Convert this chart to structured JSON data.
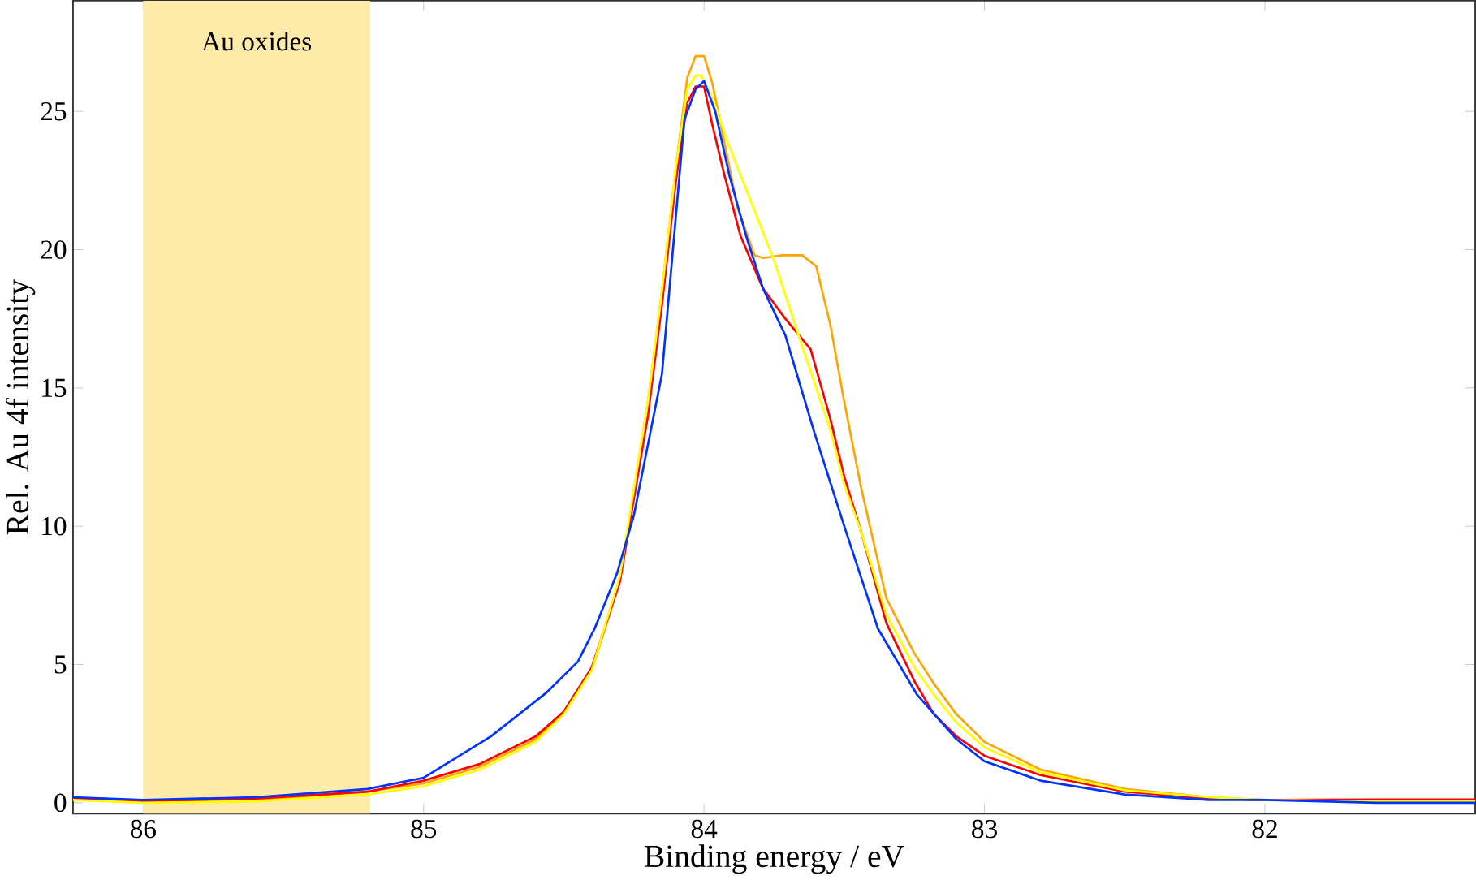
{
  "chart_data": {
    "type": "line",
    "xlabel": "Binding energy / eV",
    "ylabel": "Rel. Au 4f intensity",
    "xlim": [
      86.25,
      81.25
    ],
    "ylim": [
      -0.4,
      29
    ],
    "xticks": [
      86,
      85,
      84,
      83,
      82
    ],
    "yticks": [
      0,
      5,
      10,
      15,
      20,
      25
    ],
    "grid": false,
    "marker": "none",
    "line_style": "solid",
    "bands": [
      {
        "axis": "x",
        "from": 86,
        "to": 85.19,
        "label": "Au oxides",
        "color": "#feeba8"
      }
    ],
    "series": [
      {
        "color": "#ffa500",
        "x": [
          86.25,
          86.0,
          85.6,
          85.2,
          85.0,
          84.8,
          84.6,
          84.5,
          84.4,
          84.3,
          84.2,
          84.15,
          84.1,
          84.06,
          84.03,
          84.0,
          83.97,
          83.93,
          83.88,
          83.82,
          83.79,
          83.72,
          83.65,
          83.6,
          83.55,
          83.5,
          83.44,
          83.35,
          83.25,
          83.18,
          83.1,
          83.0,
          82.8,
          82.5,
          82.2,
          82.0,
          81.6,
          81.25
        ],
        "values": [
          0.1,
          0.05,
          0.1,
          0.4,
          0.7,
          1.3,
          2.3,
          3.3,
          4.8,
          8.0,
          14.5,
          18.5,
          23.0,
          26.2,
          27.0,
          27.0,
          26.0,
          24.0,
          21.5,
          19.8,
          19.7,
          19.8,
          19.8,
          19.4,
          17.3,
          14.5,
          11.4,
          7.4,
          5.4,
          4.3,
          3.2,
          2.2,
          1.2,
          0.5,
          0.2,
          0.1,
          0.05,
          0.05
        ]
      },
      {
        "color": "#ff0000",
        "x": [
          86.25,
          86.0,
          85.6,
          85.2,
          85.0,
          84.8,
          84.6,
          84.5,
          84.4,
          84.3,
          84.2,
          84.15,
          84.1,
          84.06,
          84.03,
          84.0,
          83.97,
          83.93,
          83.87,
          83.79,
          83.71,
          83.62,
          83.55,
          83.5,
          83.44,
          83.35,
          83.25,
          83.18,
          83.1,
          83.0,
          82.8,
          82.5,
          82.2,
          82.0,
          81.6,
          81.25
        ],
        "values": [
          0.15,
          0.05,
          0.15,
          0.4,
          0.8,
          1.4,
          2.4,
          3.3,
          4.9,
          8.0,
          14.0,
          18.0,
          22.5,
          25.3,
          25.9,
          25.9,
          24.5,
          22.8,
          20.5,
          18.6,
          17.5,
          16.4,
          13.9,
          11.8,
          9.8,
          6.5,
          4.4,
          3.2,
          2.4,
          1.7,
          1.0,
          0.4,
          0.15,
          0.1,
          0.12,
          0.12
        ]
      },
      {
        "color": "#ffff00",
        "x": [
          86.25,
          86.0,
          85.6,
          85.2,
          85.0,
          84.8,
          84.6,
          84.5,
          84.4,
          84.3,
          84.2,
          84.15,
          84.1,
          84.06,
          84.03,
          84.01,
          83.97,
          83.92,
          83.87,
          83.75,
          83.65,
          83.55,
          83.5,
          83.44,
          83.35,
          83.25,
          83.18,
          83.1,
          83.0,
          82.8,
          82.5,
          82.2,
          82.0,
          81.6,
          81.25
        ],
        "values": [
          0.1,
          0.0,
          0.05,
          0.3,
          0.6,
          1.2,
          2.2,
          3.2,
          4.8,
          8.2,
          14.5,
          18.5,
          23.0,
          25.8,
          26.3,
          26.3,
          25.5,
          24.0,
          22.7,
          19.6,
          16.5,
          13.5,
          11.5,
          9.8,
          6.8,
          4.9,
          3.9,
          2.9,
          2.0,
          1.1,
          0.45,
          0.2,
          0.1,
          0.05,
          0.05
        ]
      },
      {
        "color": "#0033ff",
        "x": [
          86.25,
          86.0,
          85.6,
          85.2,
          85.0,
          84.76,
          84.56,
          84.45,
          84.39,
          84.31,
          84.25,
          84.15,
          84.07,
          84.03,
          84.0,
          83.96,
          83.91,
          83.85,
          83.79,
          83.71,
          83.61,
          83.5,
          83.38,
          83.24,
          83.1,
          83.0,
          82.8,
          82.5,
          82.2,
          82.0,
          81.6,
          81.25
        ],
        "values": [
          0.2,
          0.1,
          0.2,
          0.5,
          0.9,
          2.4,
          4.0,
          5.1,
          6.3,
          8.3,
          10.4,
          15.5,
          24.7,
          25.8,
          26.1,
          25.0,
          22.7,
          20.5,
          18.6,
          16.9,
          13.5,
          10.0,
          6.3,
          3.9,
          2.3,
          1.5,
          0.8,
          0.3,
          0.1,
          0.1,
          0.0,
          0.0
        ]
      }
    ]
  }
}
